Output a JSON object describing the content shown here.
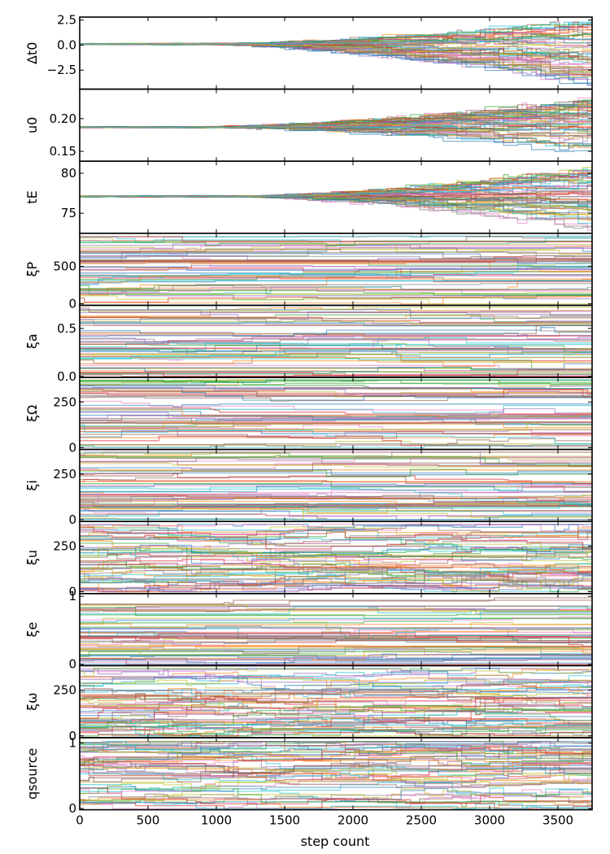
{
  "figure": {
    "xlabel": "step count"
  },
  "colors": {
    "palette": [
      "#1f77b4",
      "#ff7f0e",
      "#2ca02c",
      "#d62728",
      "#9467bd",
      "#8c564b",
      "#e377c2",
      "#7f7f7f",
      "#bcbd22",
      "#17becf"
    ]
  },
  "chart_data": {
    "type": "line",
    "description_kind": "MCMC walker trace plots, 11 stacked panels sharing x axis",
    "x_range": [
      0,
      3750
    ],
    "x_ticks": [
      0,
      500,
      1000,
      1500,
      2000,
      2500,
      3000,
      3500
    ],
    "x_tick_labels": [
      "0",
      "500",
      "1000",
      "1500",
      "2000",
      "2500",
      "3000",
      "3500"
    ],
    "xlabel": "step count",
    "panels": [
      {
        "param": "dt0",
        "ylabel": "Δt0",
        "ylim": [
          -4.4,
          2.8
        ],
        "yticks": [
          -2.5,
          0.0,
          2.5
        ],
        "ytick_labels": [
          "−2.5",
          "0.0",
          "2.5"
        ],
        "walker_start": 0.1,
        "walker_spread_start": 0.1,
        "walker_spread_end": [
          -4.2,
          2.4
        ],
        "divergence_step": 1400
      },
      {
        "param": "u0",
        "ylabel": "u0",
        "ylim": [
          0.135,
          0.245
        ],
        "yticks": [
          0.15,
          0.2
        ],
        "ytick_labels": [
          "0.15",
          "0.20"
        ],
        "walker_start": 0.187,
        "walker_spread_start": 0.002,
        "walker_spread_end": [
          0.145,
          0.235
        ],
        "divergence_step": 1400
      },
      {
        "param": "tE",
        "ylabel": "tE",
        "ylim": [
          72.5,
          81.5
        ],
        "yticks": [
          75,
          80
        ],
        "ytick_labels": [
          "75",
          "80"
        ],
        "walker_start": 77.1,
        "walker_spread_start": 0.1,
        "walker_spread_end": [
          72.8,
          81.0
        ],
        "divergence_step": 1800
      },
      {
        "param": "xiP",
        "ylabel": "ξP",
        "ylim": [
          -20,
          940
        ],
        "yticks": [
          0,
          500
        ],
        "ytick_labels": [
          "0",
          "500"
        ],
        "walker_range": [
          0,
          900
        ]
      },
      {
        "param": "xia",
        "ylabel": "ξa",
        "ylim": [
          -0.01,
          0.74
        ],
        "yticks": [
          0.0,
          0.5
        ],
        "ytick_labels": [
          "0.0",
          "0.5"
        ],
        "walker_range": [
          0.0,
          0.72
        ]
      },
      {
        "param": "xiOmega",
        "ylabel": "ξΩ",
        "ylim": [
          -10,
          385
        ],
        "yticks": [
          0,
          250
        ],
        "ytick_labels": [
          "0",
          "250"
        ],
        "walker_range": [
          0,
          370
        ]
      },
      {
        "param": "xii",
        "ylabel": "ξi",
        "ylim": [
          -10,
          385
        ],
        "yticks": [
          0,
          250
        ],
        "ytick_labels": [
          "0",
          "250"
        ],
        "walker_range": [
          0,
          370
        ]
      },
      {
        "param": "xiu",
        "ylabel": "ξu",
        "ylim": [
          -10,
          385
        ],
        "yticks": [
          0,
          250
        ],
        "ytick_labels": [
          "0",
          "250"
        ],
        "walker_range": [
          0,
          370
        ]
      },
      {
        "param": "xie",
        "ylabel": "ξe",
        "ylim": [
          -0.02,
          1.04
        ],
        "yticks": [
          0,
          1
        ],
        "ytick_labels": [
          "0",
          "1"
        ],
        "walker_range": [
          0.0,
          0.98
        ]
      },
      {
        "param": "xiomega",
        "ylabel": "ξω",
        "ylim": [
          -10,
          385
        ],
        "yticks": [
          0,
          250
        ],
        "ytick_labels": [
          "0",
          "250"
        ],
        "walker_range": [
          0,
          370
        ]
      },
      {
        "param": "qsource",
        "ylabel": "qsource",
        "ylim": [
          -0.02,
          1.08
        ],
        "yticks": [
          0,
          1
        ],
        "ytick_labels": [
          "0",
          "1"
        ],
        "walker_range": [
          0.0,
          1.02
        ]
      }
    ],
    "series_count": 60,
    "grid": false,
    "legend": "none"
  }
}
